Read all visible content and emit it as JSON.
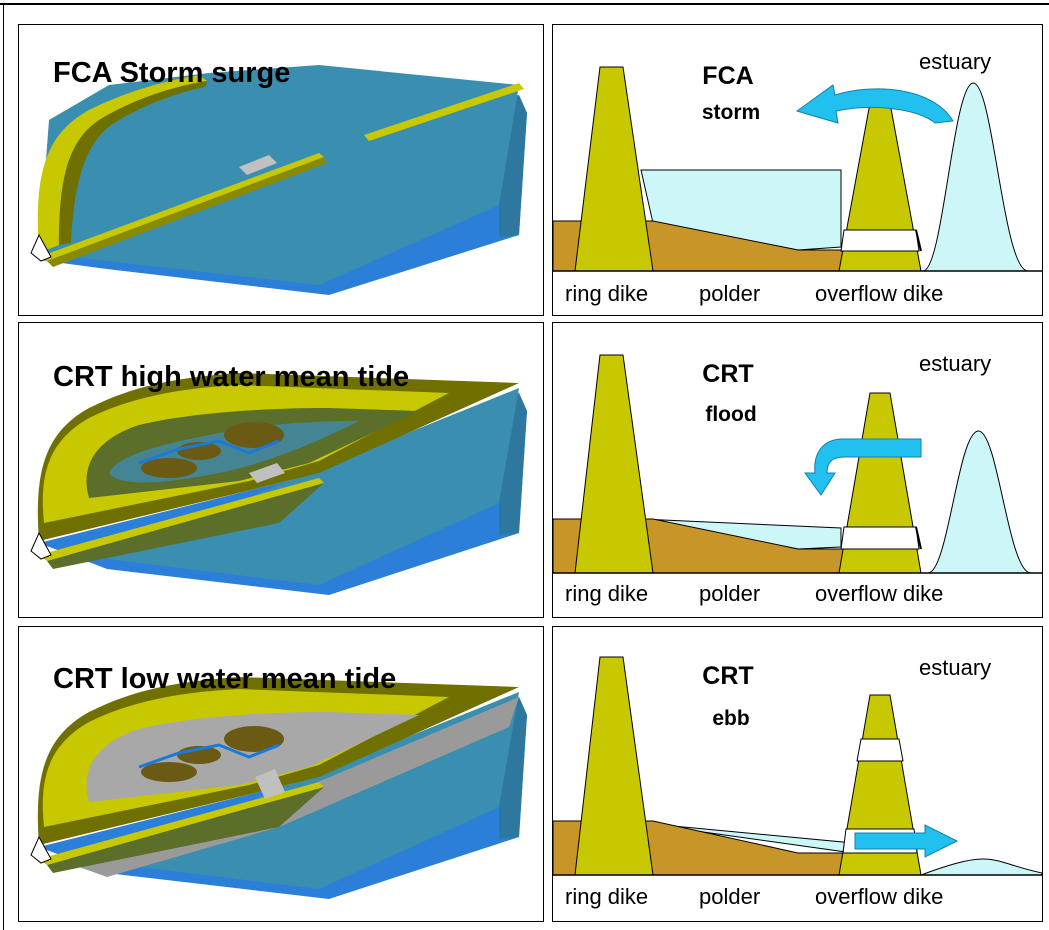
{
  "rows": [
    {
      "map_title": "FCA Storm surge",
      "scheme_label": "FCA",
      "regime_label": "storm",
      "estuary_label": "estuary",
      "ring_dike_label": "ring dike",
      "polder_label": "polder",
      "overflow_dike_label": "overflow dike"
    },
    {
      "map_title": "CRT high water mean tide",
      "scheme_label": "CRT",
      "regime_label": "flood",
      "estuary_label": "estuary",
      "ring_dike_label": "ring dike",
      "polder_label": "polder",
      "overflow_dike_label": "overflow dike"
    },
    {
      "map_title": "CRT low water mean tide",
      "scheme_label": "CRT",
      "regime_label": "ebb",
      "estuary_label": "estuary",
      "ring_dike_label": "ring dike",
      "polder_label": "polder",
      "overflow_dike_label": "overflow dike"
    }
  ],
  "colors": {
    "dike": "#c8c800",
    "polder_soil": "#c89628",
    "estuary_water": "#ccf6f8",
    "arrow": "#22c0ee",
    "river_top": "#3a8fb0",
    "river_front": "#2c7fd8"
  }
}
